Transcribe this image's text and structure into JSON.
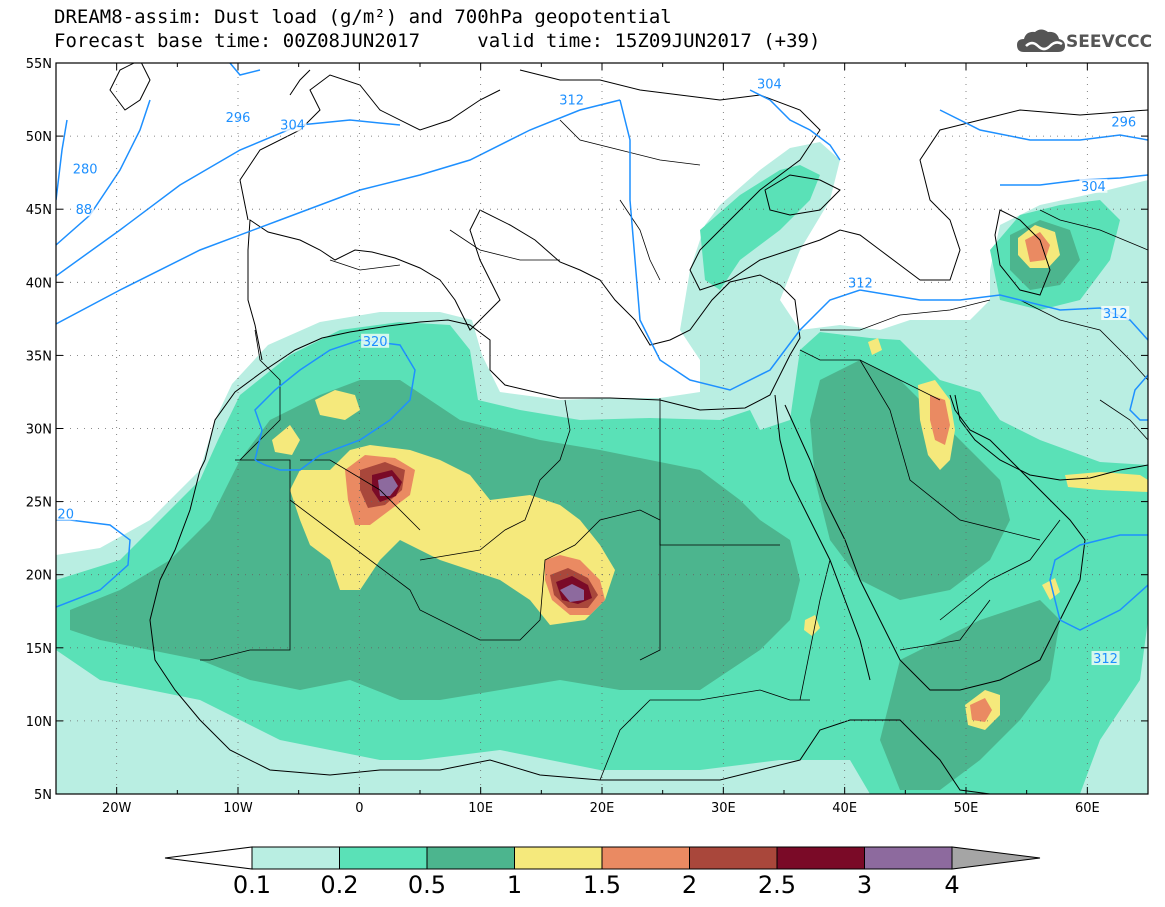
{
  "title": {
    "line1": "DREAM8-assim: Dust load (g/m²) and 700hPa geopotential",
    "line2_base": "Forecast base time: 00Z08JUN2017",
    "line2_valid": "valid time: 15Z09JUN2017 (+39)"
  },
  "logo": {
    "text": "SEEVCCC",
    "icon": "cloud-icon"
  },
  "map": {
    "lon_range": [
      -25,
      65
    ],
    "lat_range": [
      5,
      55
    ],
    "lon_ticks": [
      {
        "lon": -20,
        "label": "20W"
      },
      {
        "lon": -10,
        "label": "10W"
      },
      {
        "lon": 0,
        "label": "0"
      },
      {
        "lon": 10,
        "label": "10E"
      },
      {
        "lon": 20,
        "label": "20E"
      },
      {
        "lon": 30,
        "label": "30E"
      },
      {
        "lon": 40,
        "label": "40E"
      },
      {
        "lon": 50,
        "label": "50E"
      },
      {
        "lon": 60,
        "label": "60E"
      }
    ],
    "lat_ticks": [
      {
        "lat": 5,
        "label": "5N"
      },
      {
        "lat": 10,
        "label": "10N"
      },
      {
        "lat": 15,
        "label": "15N"
      },
      {
        "lat": 20,
        "label": "20N"
      },
      {
        "lat": 25,
        "label": "25N"
      },
      {
        "lat": 30,
        "label": "30N"
      },
      {
        "lat": 35,
        "label": "35N"
      },
      {
        "lat": 40,
        "label": "40N"
      },
      {
        "lat": 45,
        "label": "45N"
      },
      {
        "lat": 50,
        "label": "50N"
      },
      {
        "lat": 55,
        "label": "55N"
      }
    ],
    "geopotential_labels": [
      {
        "text": "296",
        "lon": -10,
        "lat": 51.3
      },
      {
        "text": "304",
        "lon": -5.5,
        "lat": 50.8
      },
      {
        "text": "280",
        "lon": -22.6,
        "lat": 47.8
      },
      {
        "text": "88",
        "lon": -22.7,
        "lat": 45.0
      },
      {
        "text": "312",
        "lon": 17.5,
        "lat": 52.5
      },
      {
        "text": "304",
        "lon": 33.8,
        "lat": 53.6
      },
      {
        "text": "296",
        "lon": 63,
        "lat": 51
      },
      {
        "text": "304",
        "lon": 60.5,
        "lat": 46.6
      },
      {
        "text": "312",
        "lon": 41.3,
        "lat": 40
      },
      {
        "text": "312",
        "lon": 62.3,
        "lat": 37.9
      },
      {
        "text": "320",
        "lon": 1.3,
        "lat": 36
      },
      {
        "text": "20",
        "lon": -24.2,
        "lat": 24.2
      },
      {
        "text": "312",
        "lon": 61.5,
        "lat": 14.3
      }
    ]
  },
  "colorbar": {
    "levels": [
      "0.1",
      "0.2",
      "0.5",
      "1",
      "1.5",
      "2",
      "2.5",
      "3",
      "4"
    ],
    "colors": [
      "#b9eee2",
      "#5ae1b7",
      "#4cb58e",
      "#f5e97c",
      "#ea8a62",
      "#a9473b",
      "#7a0a27",
      "#8d6a9e"
    ],
    "under_color": "#ffffff",
    "over_color": "#a5a5a5"
  }
}
